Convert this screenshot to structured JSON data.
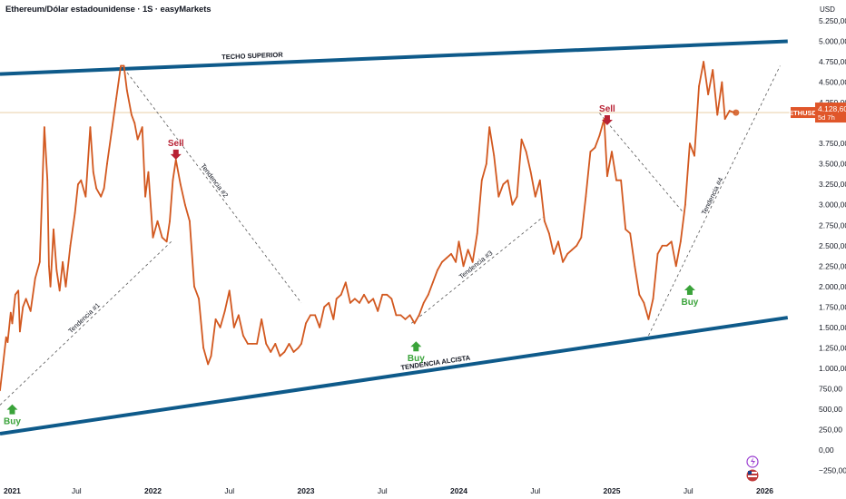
{
  "title": "Ethereum/Dólar estadounidense · 1S · easyMarkets",
  "currency": "USD",
  "price_label": {
    "symbol": "ETHUSD",
    "value": "4.128,60",
    "countdown": "5d 7h",
    "value_num": 4128.6
  },
  "colors": {
    "price_line": "#d2581f",
    "channel": "#0e5a8a",
    "buy": "#3aa33a",
    "sell": "#b82234",
    "trend": "#555555",
    "label_bg": "#e0562a"
  },
  "chart_data": {
    "type": "line",
    "xlim": [
      2021.0,
      2026.15
    ],
    "ylim": [
      -250,
      5500
    ],
    "y_ticks": [
      {
        "v": 5250,
        "label": "5.250,00"
      },
      {
        "v": 5000,
        "label": "5.000,00"
      },
      {
        "v": 4750,
        "label": "4.750,00"
      },
      {
        "v": 4500,
        "label": "4.500,00"
      },
      {
        "v": 4250,
        "label": "4.250,00"
      },
      {
        "v": 3750,
        "label": "3.750,00"
      },
      {
        "v": 3500,
        "label": "3.500,00"
      },
      {
        "v": 3250,
        "label": "3.250,00"
      },
      {
        "v": 3000,
        "label": "3.000,00"
      },
      {
        "v": 2750,
        "label": "2.750,00"
      },
      {
        "v": 2500,
        "label": "2.500,00"
      },
      {
        "v": 2250,
        "label": "2.250,00"
      },
      {
        "v": 2000,
        "label": "2.000,00"
      },
      {
        "v": 1750,
        "label": "1.750,00"
      },
      {
        "v": 1500,
        "label": "1.500,00"
      },
      {
        "v": 1250,
        "label": "1.250,00"
      },
      {
        "v": 1000,
        "label": "1.000,00"
      },
      {
        "v": 750,
        "label": "750,00"
      },
      {
        "v": 500,
        "label": "500,00"
      },
      {
        "v": 250,
        "label": "250,00"
      },
      {
        "v": 0,
        "label": "0,00"
      },
      {
        "v": -250,
        "label": "−250,00"
      }
    ],
    "x_ticks": [
      {
        "v": 2021.0,
        "label": "2021",
        "year": true
      },
      {
        "v": 2021.5,
        "label": "Jul",
        "year": false
      },
      {
        "v": 2022.0,
        "label": "2022",
        "year": true
      },
      {
        "v": 2022.5,
        "label": "Jul",
        "year": false
      },
      {
        "v": 2023.0,
        "label": "2023",
        "year": true
      },
      {
        "v": 2023.5,
        "label": "Jul",
        "year": false
      },
      {
        "v": 2024.0,
        "label": "2024",
        "year": true
      },
      {
        "v": 2024.5,
        "label": "Jul",
        "year": false
      },
      {
        "v": 2025.0,
        "label": "2025",
        "year": true
      },
      {
        "v": 2025.5,
        "label": "Jul",
        "year": false
      },
      {
        "v": 2026.0,
        "label": "2026",
        "year": true
      }
    ],
    "series": [
      {
        "points": [
          [
            2021.0,
            730
          ],
          [
            2021.02,
            1050
          ],
          [
            2021.04,
            1380
          ],
          [
            2021.05,
            1320
          ],
          [
            2021.07,
            1680
          ],
          [
            2021.08,
            1550
          ],
          [
            2021.1,
            1900
          ],
          [
            2021.12,
            1950
          ],
          [
            2021.13,
            1450
          ],
          [
            2021.15,
            1750
          ],
          [
            2021.17,
            1850
          ],
          [
            2021.2,
            1700
          ],
          [
            2021.23,
            2100
          ],
          [
            2021.26,
            2300
          ],
          [
            2021.29,
            3950
          ],
          [
            2021.31,
            3300
          ],
          [
            2021.32,
            2250
          ],
          [
            2021.33,
            2000
          ],
          [
            2021.35,
            2700
          ],
          [
            2021.37,
            2200
          ],
          [
            2021.39,
            1950
          ],
          [
            2021.41,
            2300
          ],
          [
            2021.43,
            2000
          ],
          [
            2021.46,
            2500
          ],
          [
            2021.49,
            2900
          ],
          [
            2021.51,
            3250
          ],
          [
            2021.53,
            3300
          ],
          [
            2021.56,
            3100
          ],
          [
            2021.59,
            3950
          ],
          [
            2021.61,
            3400
          ],
          [
            2021.63,
            3200
          ],
          [
            2021.66,
            3100
          ],
          [
            2021.68,
            3200
          ],
          [
            2021.7,
            3500
          ],
          [
            2021.73,
            3900
          ],
          [
            2021.76,
            4300
          ],
          [
            2021.79,
            4700
          ],
          [
            2021.81,
            4700
          ],
          [
            2021.83,
            4400
          ],
          [
            2021.86,
            4100
          ],
          [
            2021.88,
            4000
          ],
          [
            2021.9,
            3800
          ],
          [
            2021.93,
            3950
          ],
          [
            2021.95,
            3100
          ],
          [
            2021.97,
            3400
          ],
          [
            2022.0,
            2600
          ],
          [
            2022.03,
            2800
          ],
          [
            2022.06,
            2600
          ],
          [
            2022.09,
            2550
          ],
          [
            2022.11,
            2800
          ],
          [
            2022.13,
            3300
          ],
          [
            2022.15,
            3550
          ],
          [
            2022.18,
            3250
          ],
          [
            2022.21,
            3000
          ],
          [
            2022.24,
            2800
          ],
          [
            2022.27,
            2000
          ],
          [
            2022.3,
            1850
          ],
          [
            2022.33,
            1250
          ],
          [
            2022.36,
            1050
          ],
          [
            2022.38,
            1150
          ],
          [
            2022.41,
            1600
          ],
          [
            2022.44,
            1500
          ],
          [
            2022.47,
            1700
          ],
          [
            2022.5,
            1950
          ],
          [
            2022.53,
            1500
          ],
          [
            2022.56,
            1650
          ],
          [
            2022.59,
            1400
          ],
          [
            2022.62,
            1300
          ],
          [
            2022.65,
            1300
          ],
          [
            2022.68,
            1300
          ],
          [
            2022.71,
            1600
          ],
          [
            2022.74,
            1300
          ],
          [
            2022.77,
            1200
          ],
          [
            2022.8,
            1300
          ],
          [
            2022.83,
            1150
          ],
          [
            2022.86,
            1200
          ],
          [
            2022.89,
            1300
          ],
          [
            2022.92,
            1200
          ],
          [
            2022.95,
            1250
          ],
          [
            2022.97,
            1300
          ],
          [
            2023.0,
            1550
          ],
          [
            2023.03,
            1650
          ],
          [
            2023.06,
            1650
          ],
          [
            2023.09,
            1500
          ],
          [
            2023.12,
            1750
          ],
          [
            2023.15,
            1800
          ],
          [
            2023.18,
            1600
          ],
          [
            2023.2,
            1850
          ],
          [
            2023.23,
            1900
          ],
          [
            2023.26,
            2050
          ],
          [
            2023.29,
            1800
          ],
          [
            2023.32,
            1850
          ],
          [
            2023.35,
            1800
          ],
          [
            2023.38,
            1900
          ],
          [
            2023.41,
            1800
          ],
          [
            2023.44,
            1850
          ],
          [
            2023.47,
            1700
          ],
          [
            2023.5,
            1900
          ],
          [
            2023.53,
            1900
          ],
          [
            2023.56,
            1850
          ],
          [
            2023.59,
            1650
          ],
          [
            2023.62,
            1650
          ],
          [
            2023.65,
            1600
          ],
          [
            2023.68,
            1650
          ],
          [
            2023.71,
            1550
          ],
          [
            2023.74,
            1650
          ],
          [
            2023.77,
            1800
          ],
          [
            2023.8,
            1900
          ],
          [
            2023.83,
            2050
          ],
          [
            2023.86,
            2200
          ],
          [
            2023.89,
            2300
          ],
          [
            2023.92,
            2350
          ],
          [
            2023.95,
            2400
          ],
          [
            2023.98,
            2300
          ],
          [
            2024.0,
            2550
          ],
          [
            2024.03,
            2250
          ],
          [
            2024.06,
            2450
          ],
          [
            2024.09,
            2300
          ],
          [
            2024.12,
            2650
          ],
          [
            2024.15,
            3300
          ],
          [
            2024.18,
            3500
          ],
          [
            2024.2,
            3950
          ],
          [
            2024.23,
            3600
          ],
          [
            2024.26,
            3100
          ],
          [
            2024.29,
            3250
          ],
          [
            2024.32,
            3300
          ],
          [
            2024.35,
            3000
          ],
          [
            2024.38,
            3100
          ],
          [
            2024.41,
            3800
          ],
          [
            2024.44,
            3650
          ],
          [
            2024.47,
            3400
          ],
          [
            2024.5,
            3100
          ],
          [
            2024.53,
            3300
          ],
          [
            2024.56,
            2800
          ],
          [
            2024.59,
            2650
          ],
          [
            2024.62,
            2400
          ],
          [
            2024.65,
            2550
          ],
          [
            2024.68,
            2300
          ],
          [
            2024.71,
            2400
          ],
          [
            2024.74,
            2450
          ],
          [
            2024.77,
            2500
          ],
          [
            2024.8,
            2600
          ],
          [
            2024.83,
            3100
          ],
          [
            2024.86,
            3650
          ],
          [
            2024.89,
            3700
          ],
          [
            2024.92,
            3850
          ],
          [
            2024.95,
            4050
          ],
          [
            2024.97,
            3350
          ],
          [
            2025.0,
            3650
          ],
          [
            2025.03,
            3300
          ],
          [
            2025.06,
            3300
          ],
          [
            2025.09,
            2700
          ],
          [
            2025.12,
            2650
          ],
          [
            2025.15,
            2250
          ],
          [
            2025.18,
            1900
          ],
          [
            2025.21,
            1800
          ],
          [
            2025.24,
            1600
          ],
          [
            2025.27,
            1850
          ],
          [
            2025.3,
            2400
          ],
          [
            2025.33,
            2500
          ],
          [
            2025.36,
            2500
          ],
          [
            2025.39,
            2550
          ],
          [
            2025.42,
            2250
          ],
          [
            2025.45,
            2550
          ],
          [
            2025.48,
            3000
          ],
          [
            2025.51,
            3750
          ],
          [
            2025.54,
            3600
          ],
          [
            2025.57,
            4450
          ],
          [
            2025.6,
            4750
          ],
          [
            2025.63,
            4350
          ],
          [
            2025.66,
            4650
          ],
          [
            2025.69,
            4100
          ],
          [
            2025.72,
            4500
          ],
          [
            2025.74,
            4050
          ],
          [
            2025.77,
            4150
          ],
          [
            2025.8,
            4128
          ]
        ]
      }
    ],
    "annotations": {
      "channel_upper": {
        "label": "TECHO SUPERIOR",
        "from": [
          2021.0,
          4600
        ],
        "to": [
          2026.15,
          5000
        ]
      },
      "channel_lower": {
        "label": "TENDENCIA ALCISTA",
        "from": [
          2021.0,
          200
        ],
        "to": [
          2026.15,
          1620
        ]
      },
      "trendlines": [
        {
          "label": "Tendencia #1",
          "from": [
            2021.0,
            550
          ],
          "to": [
            2022.12,
            2550
          ]
        },
        {
          "label": "Tendencia #2",
          "from": [
            2021.81,
            4670
          ],
          "to": [
            2022.97,
            1800
          ]
        },
        {
          "label": "Tendencia #3",
          "from": [
            2023.69,
            1550
          ],
          "to": [
            2024.55,
            2850
          ]
        },
        {
          "label": "Tendencia #4",
          "from": [
            2025.24,
            1400
          ],
          "to": [
            2026.1,
            4700
          ]
        },
        {
          "label": "",
          "from": [
            2024.92,
            4120
          ],
          "to": [
            2025.47,
            2900
          ]
        }
      ],
      "signals": [
        {
          "type": "buy",
          "label": "Buy",
          "at": [
            2021.08,
            560
          ]
        },
        {
          "type": "sell",
          "label": "Sell",
          "at": [
            2022.15,
            3720
          ]
        },
        {
          "type": "buy",
          "label": "Buy",
          "at": [
            2023.72,
            1330
          ]
        },
        {
          "type": "sell",
          "label": "Sell",
          "at": [
            2024.97,
            4140
          ]
        },
        {
          "type": "buy",
          "label": "Buy",
          "at": [
            2025.51,
            2020
          ]
        }
      ]
    }
  }
}
